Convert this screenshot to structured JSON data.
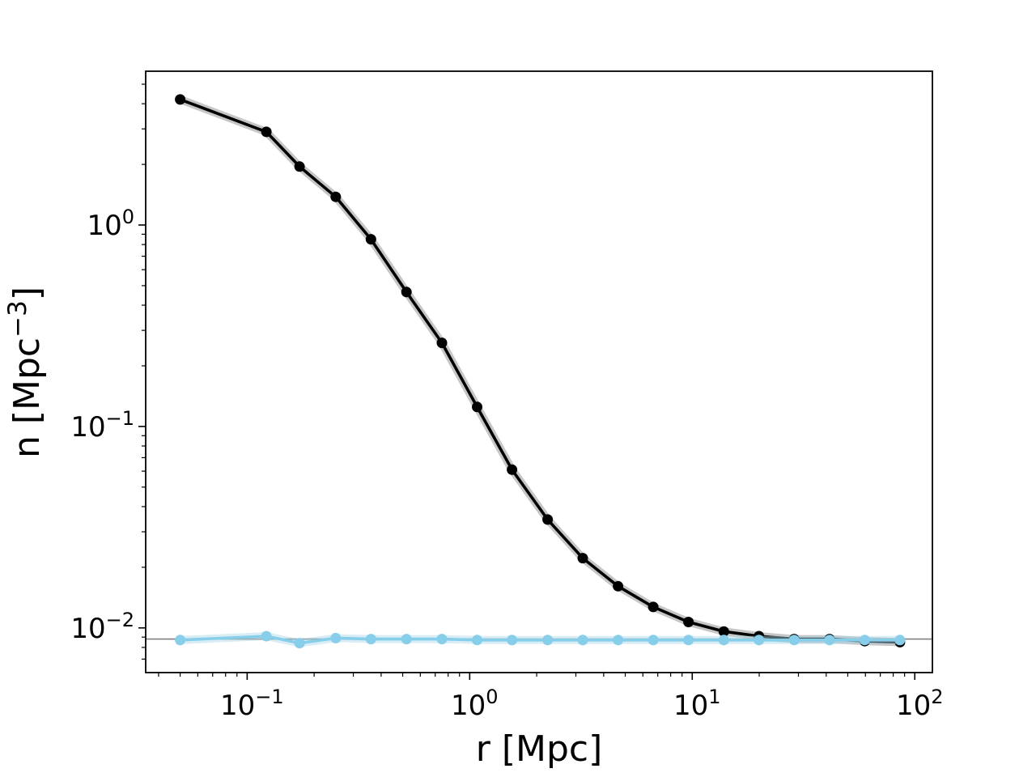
{
  "chart_data": {
    "type": "line",
    "title": "",
    "xlabel": "r [Mpc]",
    "ylabel_base": "n [Mpc",
    "ylabel_exp": "−3",
    "ylabel_close": "]",
    "xscale": "log",
    "yscale": "log",
    "xlim": [
      0.035,
      120
    ],
    "ylim": [
      0.006,
      5.8
    ],
    "grid": false,
    "legend": "none",
    "x_ticks": [
      {
        "value": 0.1,
        "base": "10",
        "exp": "−1"
      },
      {
        "value": 1,
        "base": "10",
        "exp": "0"
      },
      {
        "value": 10,
        "base": "10",
        "exp": "1"
      },
      {
        "value": 100,
        "base": "10",
        "exp": "2"
      }
    ],
    "y_ticks": [
      {
        "value": 0.01,
        "base": "10",
        "exp": "−2"
      },
      {
        "value": 0.1,
        "base": "10",
        "exp": "−1"
      },
      {
        "value": 1,
        "base": "10",
        "exp": "0"
      }
    ],
    "reference_line": {
      "y": 0.0088,
      "color": "#808080"
    },
    "series": [
      {
        "color": "#000000",
        "band_color": "#808080",
        "x": [
          0.05,
          0.122,
          0.172,
          0.25,
          0.36,
          0.52,
          0.75,
          1.08,
          1.55,
          2.24,
          3.22,
          4.64,
          6.68,
          9.62,
          13.86,
          19.95,
          28.7,
          41.4,
          59.6,
          85.8
        ],
        "y": [
          4.2,
          2.9,
          1.95,
          1.38,
          0.85,
          0.465,
          0.26,
          0.125,
          0.061,
          0.0345,
          0.0222,
          0.0161,
          0.0127,
          0.0107,
          0.0096,
          0.0091,
          0.0088,
          0.0088,
          0.0086,
          0.0085
        ]
      },
      {
        "color": "#87ceeb",
        "band_color": "#add8e6",
        "x": [
          0.05,
          0.122,
          0.172,
          0.25,
          0.36,
          0.52,
          0.75,
          1.08,
          1.55,
          2.24,
          3.22,
          4.64,
          6.68,
          9.62,
          13.86,
          19.95,
          28.7,
          41.4,
          59.6,
          85.8
        ],
        "y": [
          0.0087,
          0.0091,
          0.0084,
          0.0089,
          0.0088,
          0.0088,
          0.0088,
          0.0087,
          0.0087,
          0.0087,
          0.0087,
          0.0087,
          0.0087,
          0.0087,
          0.0087,
          0.0087,
          0.0087,
          0.0087,
          0.0087,
          0.0087
        ]
      }
    ]
  }
}
